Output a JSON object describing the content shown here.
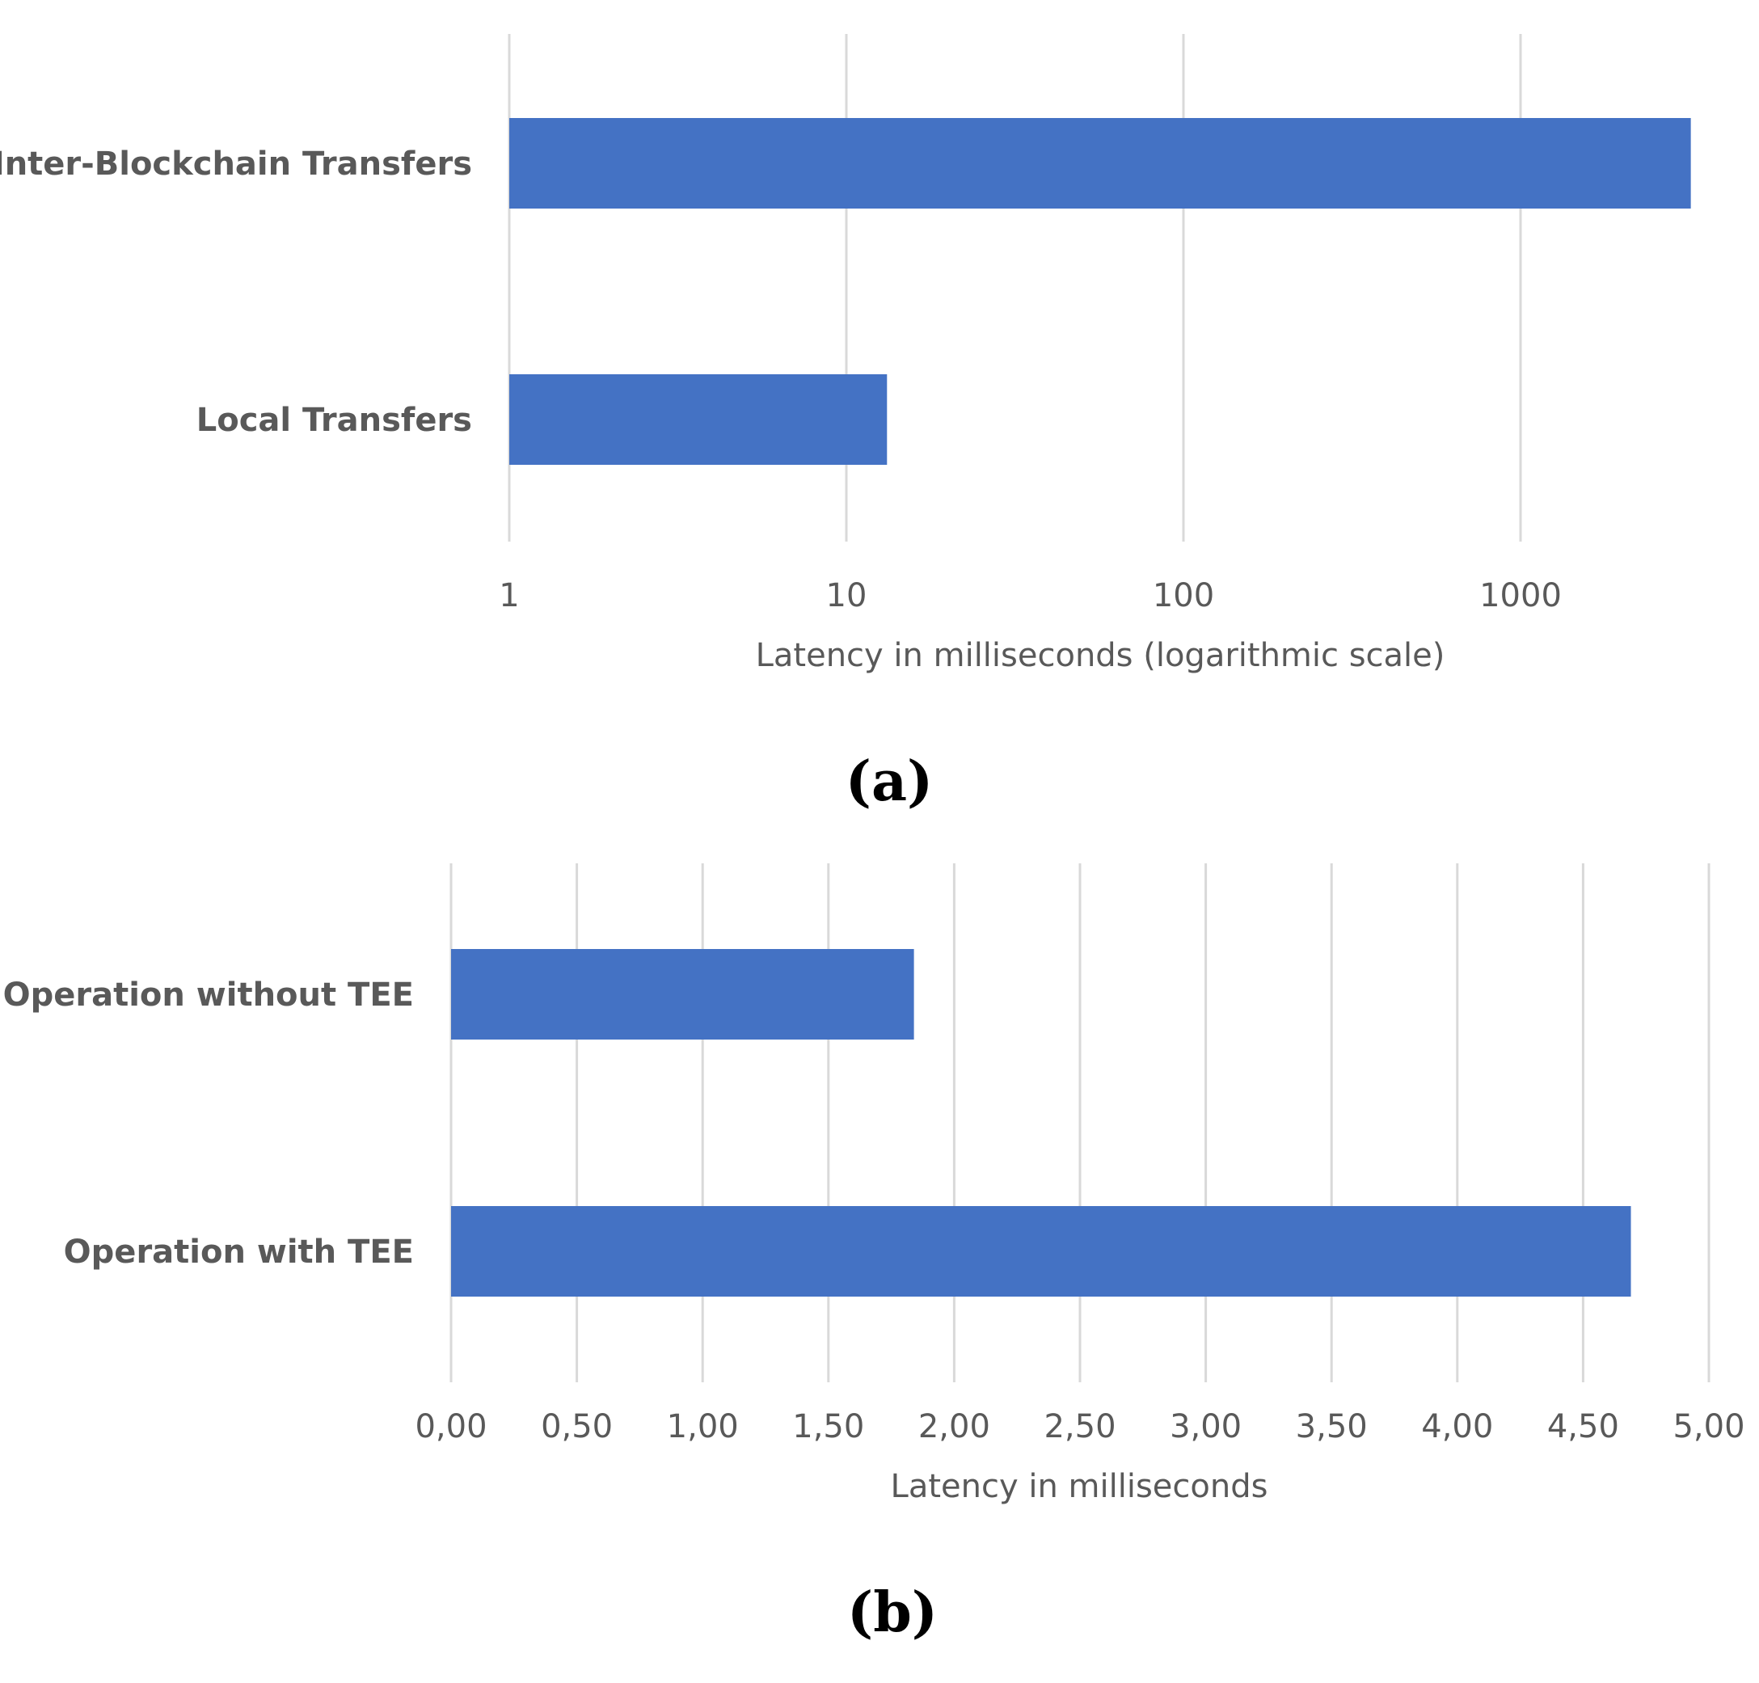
{
  "colors": {
    "bar": "#4472c4",
    "grid": "#d9d9d9",
    "text": "#595959"
  },
  "panels": [
    {
      "label": "(a)"
    },
    {
      "label": "(b)"
    }
  ],
  "chart_data": [
    {
      "type": "bar",
      "orientation": "horizontal",
      "scale": "log",
      "categories": [
        "Inter-Blockchain Transfers",
        "Local Transfers"
      ],
      "values": [
        3200,
        13.2
      ],
      "ticks": [
        1,
        10,
        100,
        1000
      ],
      "tick_labels": [
        "1",
        "10",
        "100",
        "1000"
      ],
      "xlabel": "Latency in milliseconds (logarithmic scale)",
      "xlim": [
        1,
        10000
      ],
      "grid": "vertical"
    },
    {
      "type": "bar",
      "orientation": "horizontal",
      "scale": "linear",
      "categories": [
        "Operation without TEE",
        "Operation with TEE"
      ],
      "values": [
        1.84,
        4.69
      ],
      "ticks": [
        0,
        0.5,
        1,
        1.5,
        2,
        2.5,
        3,
        3.5,
        4,
        4.5,
        5
      ],
      "tick_labels": [
        "0,00",
        "0,50",
        "1,00",
        "1,50",
        "2,00",
        "2,50",
        "3,00",
        "3,50",
        "4,00",
        "4,50",
        "5,00"
      ],
      "xlabel": "Latency in milliseconds",
      "xlim": [
        0,
        5
      ],
      "grid": "vertical"
    }
  ]
}
